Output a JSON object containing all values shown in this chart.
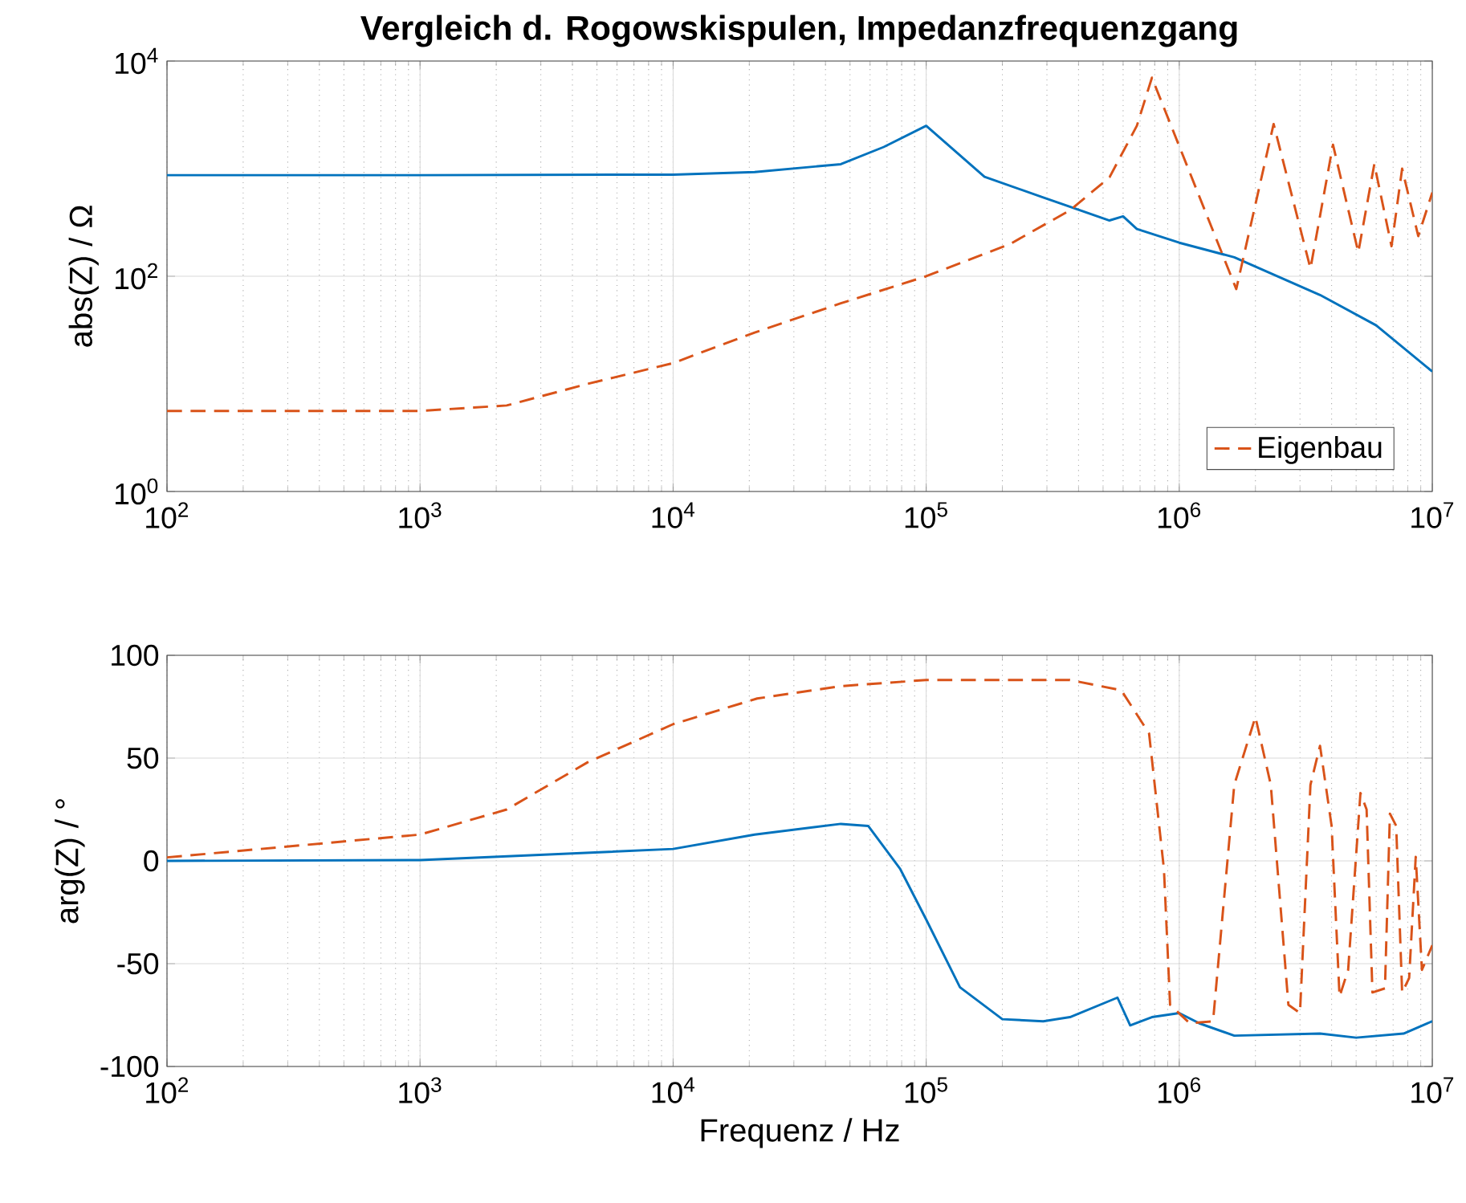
{
  "chart_data": [
    {
      "type": "line",
      "title": "**Vergleich d. Rogowskispulen, Impedanzfrequenzgang**",
      "ylabel": "abs(Z) / Ω",
      "log": "xy",
      "grid": true,
      "legend": "bottom right",
      "xlim": [
        100,
        10000000
      ],
      "ylim": [
        1,
        10000
      ],
      "xticks": [
        {
          "value": 100,
          "label": "10$^{2}$"
        },
        {
          "value": 1000,
          "label": "10$^{3}$"
        },
        {
          "value": 10000,
          "label": "10$^{4}$"
        },
        {
          "value": 100000,
          "label": "10$^{5}$"
        },
        {
          "value": 1000000,
          "label": "10$^{6}$"
        },
        {
          "value": 10000000,
          "label": "10$^{7}$"
        }
      ],
      "yticks": [
        {
          "value": 1,
          "label": "10$^{0}$"
        },
        {
          "value": 100,
          "label": "10$^{2}$"
        },
        {
          "value": 10000,
          "label": "10$^{4}$"
        }
      ],
      "series": [
        {
          "color": "#0072bd",
          "line_style": "solid",
          "x": [
            100,
            1000,
            10000,
            21000,
            46000,
            68000,
            100000,
            170000,
            290000,
            530000,
            600000,
            680000,
            1000000,
            1650000,
            3600000,
            6000000,
            10000000
          ],
          "values": [
            870,
            870,
            880,
            930,
            1100,
            1590,
            2500,
            840,
            540,
            330,
            360,
            275,
            205,
            150,
            67,
            35,
            13
          ]
        },
        {
          "name": "Eigenbau",
          "color": "#d95319",
          "line_style": "dashed",
          "x": [
            100,
            1000,
            2200,
            4600,
            10000,
            21000,
            46000,
            100000,
            215000,
            370000,
            530000,
            680000,
            780000,
            1680000,
            2360000,
            3300000,
            4050000,
            5100000,
            5900000,
            6900000,
            7600000,
            8800000,
            10000000
          ],
          "values": [
            5.6,
            5.6,
            6.3,
            10,
            15.6,
            30,
            56,
            100,
            200,
            410,
            830,
            2500,
            7000,
            76,
            2600,
            118,
            1670,
            167,
            1100,
            190,
            1000,
            236,
            600
          ]
        }
      ]
    },
    {
      "type": "line",
      "xlabel": "Frequenz / Hz",
      "ylabel": "arg(Z) / °",
      "log": "x",
      "grid": true,
      "xlim": [
        100,
        10000000
      ],
      "ylim": [
        -100,
        100
      ],
      "xticks": [
        {
          "value": 100,
          "label": "10$^{2}$"
        },
        {
          "value": 1000,
          "label": "10$^{3}$"
        },
        {
          "value": 10000,
          "label": "10$^{4}$"
        },
        {
          "value": 100000,
          "label": "10$^{5}$"
        },
        {
          "value": 1000000,
          "label": "10$^{6}$"
        },
        {
          "value": 10000000,
          "label": "10$^{7}$"
        }
      ],
      "yticks": [
        -100,
        -50,
        0,
        50,
        100
      ],
      "series": [
        {
          "color": "#0072bd",
          "line_style": "solid",
          "x": [
            100,
            1000,
            10000,
            21000,
            46000,
            59000,
            79000,
            100000,
            136000,
            200000,
            290000,
            370000,
            570000,
            640000,
            780000,
            1000000,
            1200000,
            1650000,
            3600000,
            5000000,
            7700000,
            10000000
          ],
          "values": [
            0,
            0.4,
            5.8,
            12.8,
            18,
            17,
            -4,
            -28.5,
            -61.5,
            -77,
            -78,
            -76,
            -66.5,
            -80,
            -76,
            -74,
            -79,
            -85,
            -84,
            -86,
            -84,
            -78
          ]
        },
        {
          "color": "#d95319",
          "line_style": "dashed",
          "x": [
            100,
            1000,
            2200,
            4600,
            10000,
            21500,
            46000,
            100000,
            370000,
            590000,
            760000,
            870000,
            920000,
            1100000,
            1360000,
            1650000,
            2000000,
            2300000,
            2700000,
            3000000,
            3300000,
            3600000,
            4000000,
            4300000,
            4650000,
            5200000,
            5500000,
            5800000,
            6500000,
            6800000,
            7200000,
            7600000,
            8100000,
            8600000,
            9100000,
            10000000
          ],
          "values": [
            1.7,
            12.8,
            25,
            48,
            66.5,
            79,
            85,
            88,
            88,
            83,
            62,
            -4,
            -70,
            -79,
            -78,
            37,
            70,
            37,
            -70,
            -74,
            37,
            56,
            17,
            -66,
            -53,
            33,
            25,
            -64,
            -62,
            23,
            17,
            -64,
            -57,
            2,
            -53,
            -41
          ]
        }
      ]
    }
  ]
}
